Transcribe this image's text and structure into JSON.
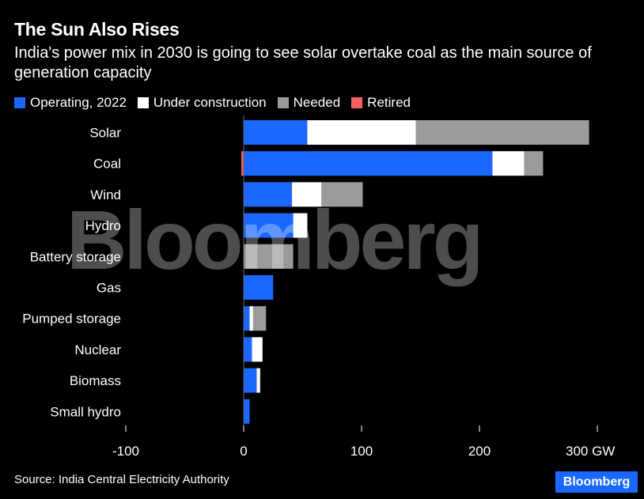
{
  "title": "The Sun Also Rises",
  "subtitle": "India's power mix in 2030 is going to see solar overtake coal as the main source of generation capacity",
  "source": "Source: India Central Electricity Authority",
  "logo": "Bloomberg",
  "watermark": "Bloomberg",
  "colors": {
    "operating": "#1a68ff",
    "under_construction": "#ffffff",
    "needed": "#9b9b9b",
    "retired": "#f4605d",
    "background": "#000000"
  },
  "legend": [
    {
      "label": "Operating, 2022",
      "color": "#1a68ff"
    },
    {
      "label": "Under construction",
      "color": "#ffffff"
    },
    {
      "label": "Needed",
      "color": "#9b9b9b"
    },
    {
      "label": "Retired",
      "color": "#f4605d"
    }
  ],
  "chart_data": {
    "type": "bar",
    "orientation": "horizontal",
    "stacked": true,
    "categories": [
      "Solar",
      "Coal",
      "Wind",
      "Hydro",
      "Battery storage",
      "Gas",
      "Pumped storage",
      "Nuclear",
      "Biomass",
      "Small hydro"
    ],
    "series": [
      {
        "name": "Operating, 2022",
        "values": [
          54,
          211,
          41,
          42,
          0,
          25,
          5,
          7,
          11,
          5
        ]
      },
      {
        "name": "Under construction",
        "values": [
          92,
          27,
          25,
          12,
          0,
          0,
          3,
          9,
          3,
          0
        ]
      },
      {
        "name": "Needed",
        "values": [
          147,
          16,
          35,
          0,
          42,
          0,
          11,
          0,
          0,
          0
        ]
      },
      {
        "name": "Retired",
        "values": [
          0,
          -2,
          0,
          0,
          0,
          0,
          0,
          0,
          0,
          0
        ]
      }
    ],
    "xlim": [
      -100,
      300
    ],
    "xticks": [
      -100,
      0,
      100,
      200,
      300
    ],
    "xtick_labels": [
      "-100",
      "0",
      "100",
      "200",
      "300 GW"
    ],
    "grid": false,
    "legend_position": "top-left"
  }
}
